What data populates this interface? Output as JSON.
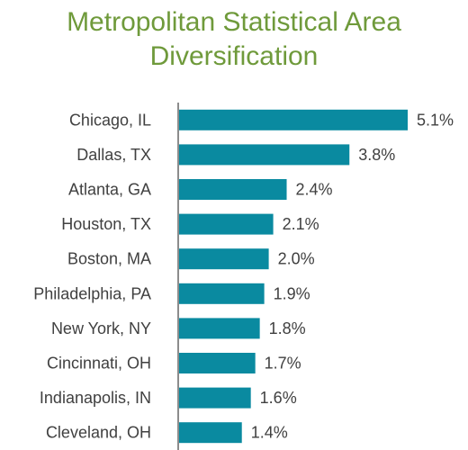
{
  "chart_data": {
    "type": "bar",
    "orientation": "horizontal",
    "title_lines": [
      "Metropolitan Statistical Area",
      "Diversification"
    ],
    "categories": [
      "Chicago, IL",
      "Dallas, TX",
      "Atlanta, GA",
      "Houston, TX",
      "Boston, MA",
      "Philadelphia, PA",
      "New York, NY",
      "Cincinnati, OH",
      "Indianapolis, IN",
      "Cleveland, OH"
    ],
    "values": [
      5.1,
      3.8,
      2.4,
      2.1,
      2.0,
      1.9,
      1.8,
      1.7,
      1.6,
      1.4
    ],
    "value_labels": [
      "5.1%",
      "3.8%",
      "2.4%",
      "2.1%",
      "2.0%",
      "1.9%",
      "1.8%",
      "1.7%",
      "1.6%",
      "1.4%"
    ],
    "xlabel": "",
    "ylabel": "",
    "xlim": [
      0,
      5.1
    ],
    "grid": false,
    "legend": "none",
    "colors": {
      "bar": "#0a8aa0",
      "title": "#6f9a3b",
      "axis": "#8c8c8c",
      "text": "#404040"
    }
  }
}
